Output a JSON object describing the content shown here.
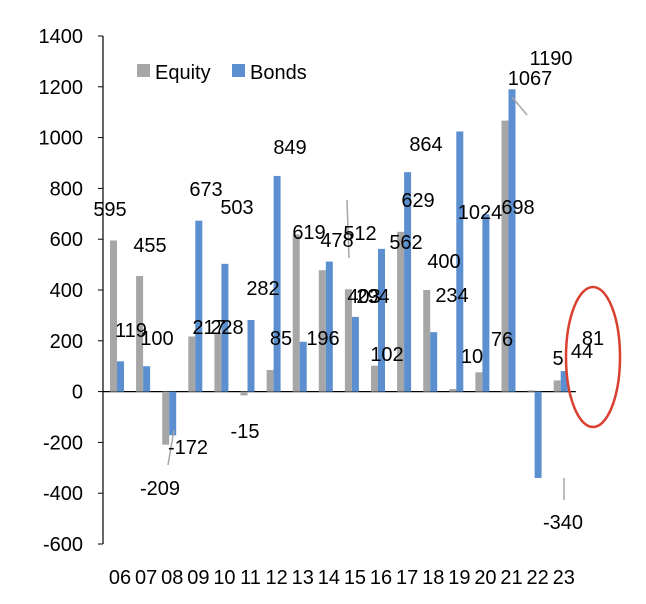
{
  "chart_data": {
    "type": "bar",
    "categories": [
      "06",
      "07",
      "08",
      "09",
      "10",
      "11",
      "12",
      "13",
      "14",
      "15",
      "16",
      "17",
      "18",
      "19",
      "20",
      "21",
      "22",
      "23"
    ],
    "series": [
      {
        "name": "Equity",
        "color": "#a6a6a6",
        "values": [
          595,
          455,
          -209,
          217,
          228,
          -15,
          85,
          619,
          478,
          403,
          102,
          629,
          400,
          10,
          76,
          1067,
          5,
          44
        ]
      },
      {
        "name": "Bonds",
        "color": "#5b8fd0",
        "values": [
          119,
          100,
          -172,
          673,
          503,
          282,
          849,
          196,
          512,
          294,
          562,
          864,
          234,
          1024,
          698,
          1190,
          -340,
          81
        ]
      }
    ],
    "y_ticks": [
      "1400",
      "1200",
      "1000",
      "800",
      "600",
      "400",
      "200",
      "0",
      "-200",
      "-400",
      "-600"
    ],
    "ylim": [
      -600,
      1400
    ],
    "legend_position": "top-left",
    "highlight": {
      "category": "23",
      "shape": "ellipse",
      "color": "#d9402f"
    },
    "grid": false
  }
}
